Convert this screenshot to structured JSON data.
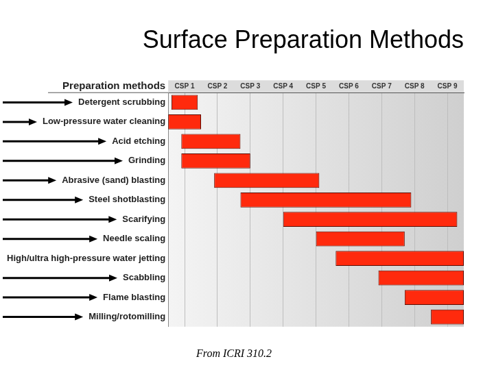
{
  "chart_data": {
    "type": "bar",
    "orientation": "horizontal",
    "title": "Surface Preparation Methods",
    "header": "Preparation methods",
    "source": "From ICRI 310.2",
    "categories": [
      "Detergent scrubbing",
      "Low-pressure water cleaning",
      "Acid etching",
      "Grinding",
      "Abrasive (sand) blasting",
      "Steel shotblasting",
      "Scarifying",
      "Needle scaling",
      "High/ultra high-pressure water jetting",
      "Scabbling",
      "Flame blasting",
      "Milling/rotomilling"
    ],
    "values": [
      [
        0.6,
        1.4
      ],
      [
        0.5,
        1.5
      ],
      [
        0.9,
        2.7
      ],
      [
        0.9,
        3.0
      ],
      [
        1.9,
        5.1
      ],
      [
        2.7,
        7.9
      ],
      [
        4.0,
        9.3
      ],
      [
        5.0,
        7.7
      ],
      [
        5.6,
        9.5
      ],
      [
        6.9,
        9.5
      ],
      [
        7.7,
        9.5
      ],
      [
        8.5,
        9.5
      ]
    ],
    "color": "#ff2a0d",
    "xlim": [
      0.5,
      9.5
    ],
    "xticks": [
      {
        "value": 1,
        "label": "CSP 1"
      },
      {
        "value": 2,
        "label": "CSP 2"
      },
      {
        "value": 3,
        "label": "CSP 3"
      },
      {
        "value": 4,
        "label": "CSP 4"
      },
      {
        "value": 5,
        "label": "CSP 5"
      },
      {
        "value": 6,
        "label": "CSP 6"
      },
      {
        "value": 7,
        "label": "CSP 7"
      },
      {
        "value": 8,
        "label": "CSP 8"
      },
      {
        "value": 9,
        "label": "CSP 9"
      }
    ],
    "grid": true
  }
}
